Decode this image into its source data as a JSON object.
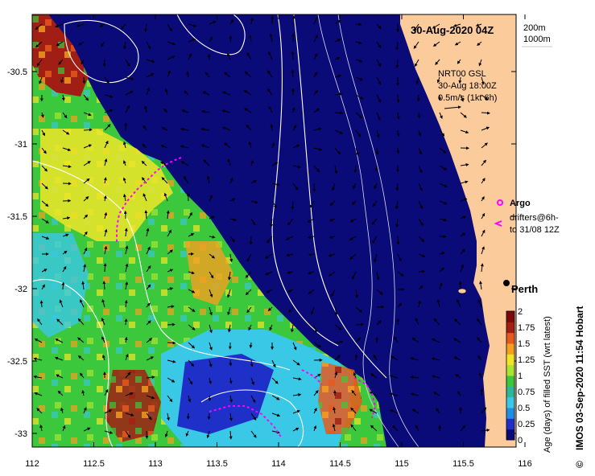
{
  "map": {
    "title": "30-Aug-2020 04Z",
    "depth_legend": [
      "200m",
      "1000m"
    ],
    "current_info": {
      "line1": "NRT00 GSL",
      "line2": "30-Aug 18:00Z",
      "line3": "0.5m/s (1kt 6h)"
    },
    "legend": {
      "argo": "Argo",
      "drifters_line1": "drifters@6h-",
      "drifters_line2": "to 31/08 12Z"
    },
    "city": "Perth",
    "credit": "IMOS 03-Sep-2020 11:54 Hobart",
    "copyright": "©",
    "lon_ticks": [
      "112",
      "112.5",
      "113",
      "113.5",
      "114",
      "114.5",
      "115",
      "115.5",
      "116"
    ],
    "lat_ticks": [
      "-30.5",
      "-31",
      "-31.5",
      "-32",
      "-32.5",
      "-33"
    ],
    "colorbar": {
      "title": "Age (days) of filled SST (wrt latest)",
      "ticks": [
        "2",
        "1.75",
        "1.5",
        "1.25",
        "1",
        "0.75",
        "0.5",
        "0.25",
        "0"
      ],
      "min": 0,
      "max": 2,
      "colors": [
        "#0a0a7a",
        "#1e30c8",
        "#1f8fe6",
        "#39c8e6",
        "#2eb89a",
        "#3cc83c",
        "#a8e632",
        "#f0e628",
        "#f5a020",
        "#e65a1e",
        "#a01e14",
        "#7a0a0a"
      ]
    },
    "colors": {
      "ocean": "#0a0a78",
      "land": "#fccb9b"
    }
  }
}
